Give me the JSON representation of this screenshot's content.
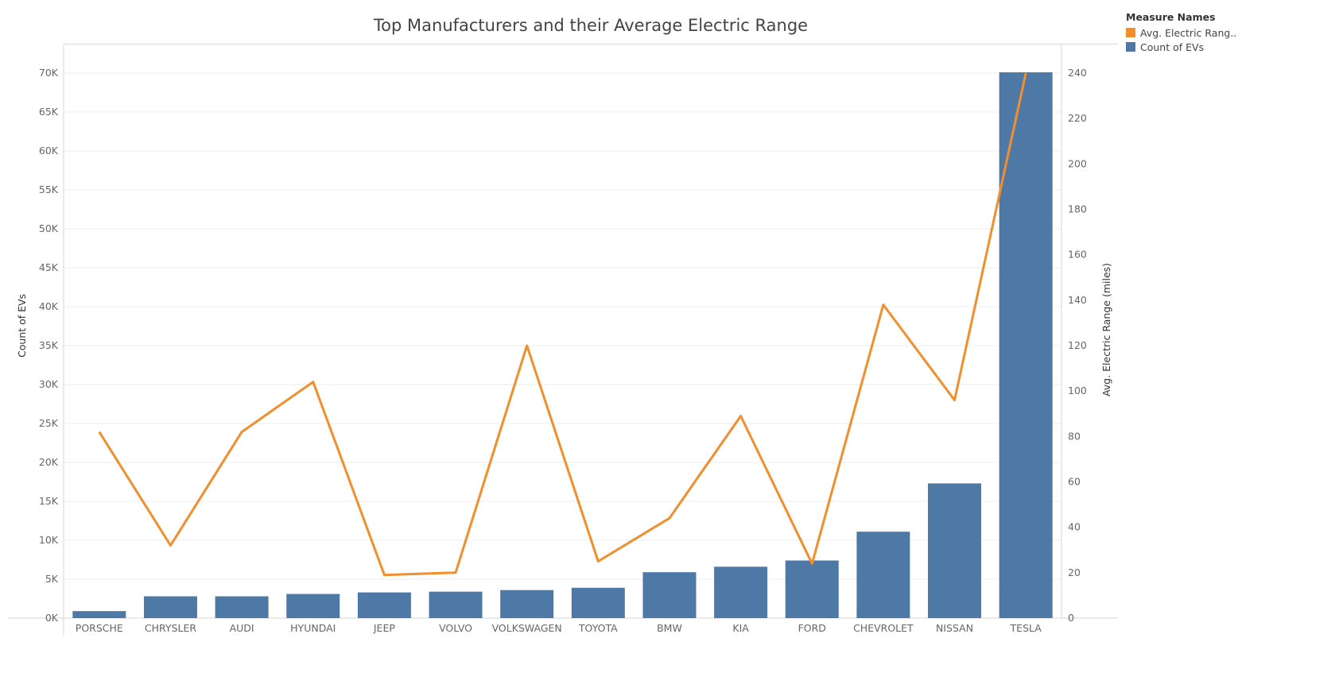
{
  "chart_data": {
    "type": "bar+line",
    "title": "Top Manufacturers and their Average Electric Range",
    "categories": [
      "PORSCHE",
      "CHRYSLER",
      "AUDI",
      "HYUNDAI",
      "JEEP",
      "VOLVO",
      "VOLKSWAGEN",
      "TOYOTA",
      "BMW",
      "KIA",
      "FORD",
      "CHEVROLET",
      "NISSAN",
      "TESLA"
    ],
    "series": [
      {
        "name": "Count of EVs",
        "chart": "bar",
        "axis": "left",
        "color": "#4e79a7",
        "values": [
          900,
          2800,
          2800,
          3100,
          3300,
          3400,
          3600,
          3900,
          5900,
          6600,
          7400,
          11100,
          17300,
          70100
        ]
      },
      {
        "name": "Avg. Electric Range",
        "chart": "line",
        "axis": "right",
        "color": "#f28e2b",
        "values": [
          82,
          32,
          82,
          104,
          19,
          20,
          120,
          25,
          44,
          89,
          24,
          138,
          96,
          240
        ]
      }
    ],
    "ylabel": "Count of EVs",
    "y2label": "Avg. Electric Range (miles)",
    "ylim": [
      0,
      70000
    ],
    "y_ticks": [
      0,
      5000,
      10000,
      15000,
      20000,
      25000,
      30000,
      35000,
      40000,
      45000,
      50000,
      55000,
      60000,
      65000,
      70000
    ],
    "y_tick_labels": [
      "0K",
      "5K",
      "10K",
      "15K",
      "20K",
      "25K",
      "30K",
      "35K",
      "40K",
      "45K",
      "50K",
      "55K",
      "60K",
      "65K",
      "70K"
    ],
    "y2lim": [
      0,
      240
    ],
    "y2_ticks": [
      0,
      20,
      40,
      60,
      80,
      100,
      120,
      140,
      160,
      180,
      200,
      220,
      240
    ],
    "y2_tick_labels": [
      "0",
      "20",
      "40",
      "60",
      "80",
      "100",
      "120",
      "140",
      "160",
      "180",
      "200",
      "220",
      "240"
    ],
    "grid": true,
    "legend_position": "top-right",
    "legend": {
      "title": "Measure Names",
      "items": [
        {
          "label": "Avg. Electric Rang..",
          "color": "#f28e2b"
        },
        {
          "label": "Count of EVs",
          "color": "#4e79a7"
        }
      ]
    }
  }
}
